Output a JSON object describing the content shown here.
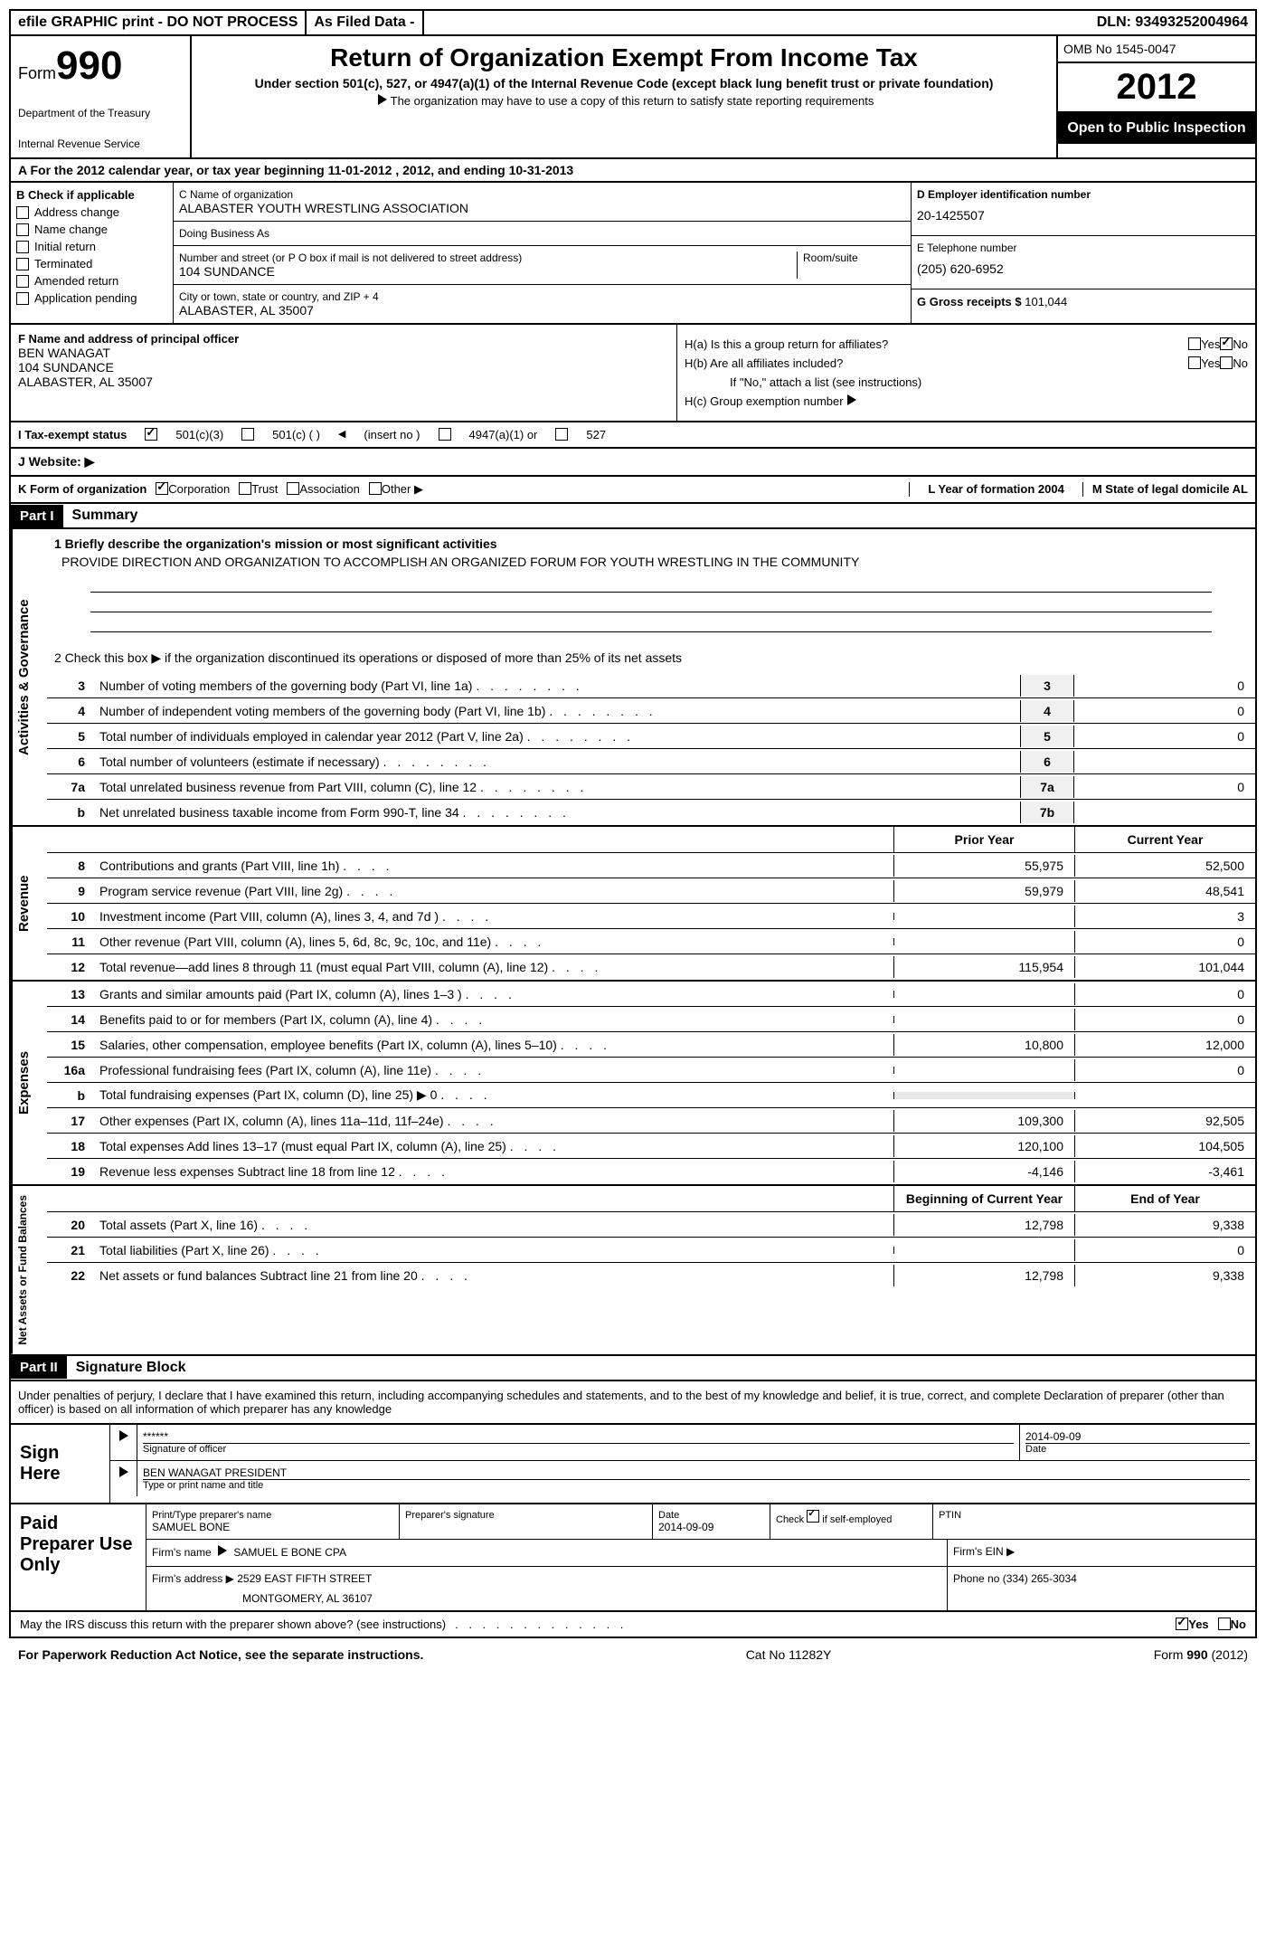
{
  "topbar": {
    "efile": "efile GRAPHIC print - DO NOT PROCESS",
    "asfiled": "As Filed Data -",
    "dln_label": "DLN:",
    "dln": "93493252004964"
  },
  "header": {
    "form_label": "Form",
    "form_num": "990",
    "title": "Return of Organization Exempt From Income Tax",
    "subtitle": "Under section 501(c), 527, or 4947(a)(1) of the Internal Revenue Code (except black lung benefit trust or private foundation)",
    "note": "The organization may have to use a copy of this return to satisfy state reporting requirements",
    "dept1": "Department of the Treasury",
    "dept2": "Internal Revenue Service",
    "omb": "OMB No 1545-0047",
    "year": "2012",
    "open": "Open to Public Inspection"
  },
  "sectionA": "A  For the 2012 calendar year, or tax year beginning 11-01-2012     , 2012, and ending 10-31-2013",
  "checkboxB": {
    "label": "B  Check if applicable",
    "items": [
      "Address change",
      "Name change",
      "Initial return",
      "Terminated",
      "Amended return",
      "Application pending"
    ]
  },
  "orgC": {
    "name_label": "C Name of organization",
    "name": "ALABASTER YOUTH WRESTLING ASSOCIATION",
    "dba_label": "Doing Business As",
    "street_label": "Number and street (or P O  box if mail is not delivered to street address)",
    "room_label": "Room/suite",
    "street": "104 SUNDANCE",
    "city_label": "City or town, state or country, and ZIP + 4",
    "city": "ALABASTER, AL  35007"
  },
  "rightD": {
    "ein_label": "D Employer identification number",
    "ein": "20-1425507",
    "tel_label": "E Telephone number",
    "tel": "(205) 620-6952",
    "gross_label": "G Gross receipts $",
    "gross": "101,044"
  },
  "officerF": {
    "label": "F   Name and address of principal officer",
    "name": "BEN WANAGAT",
    "street": "104 SUNDANCE",
    "city": "ALABASTER, AL  35007"
  },
  "H": {
    "a": "H(a)  Is this a group return for affiliates?",
    "b": "H(b)  Are all affiliates included?",
    "b_note": "If \"No,\" attach a list  (see instructions)",
    "c": "H(c)   Group exemption number",
    "yes": "Yes",
    "no": "No"
  },
  "I": {
    "label": "I   Tax-exempt status",
    "opts": [
      "501(c)(3)",
      "501(c) (  )",
      "(insert no )",
      "4947(a)(1) or",
      "527"
    ]
  },
  "J": "J  Website: ▶",
  "K": {
    "label": "K Form of organization",
    "opts": [
      "Corporation",
      "Trust",
      "Association",
      "Other ▶"
    ],
    "L": "L Year of formation  2004",
    "M": "M State of legal domicile  AL"
  },
  "part1": {
    "header": "Part I",
    "title": "Summary",
    "line1_label": "1   Briefly describe the organization's mission or most significant activities",
    "line1_text": "PROVIDE DIRECTION AND ORGANIZATION TO ACCOMPLISH AN ORGANIZED FORUM FOR YOUTH WRESTLING IN THE COMMUNITY",
    "line2": "2   Check this box ▶         if the organization discontinued its operations or disposed of more than 25% of its net assets",
    "vert_gov": "Activities & Governance",
    "vert_rev": "Revenue",
    "vert_exp": "Expenses",
    "vert_net": "Net Assets or Fund Balances",
    "col_py": "Prior Year",
    "col_cy": "Current Year",
    "col_boy": "Beginning of Current Year",
    "col_eoy": "End of Year",
    "gov_lines": [
      {
        "n": "3",
        "t": "Number of voting members of the governing body (Part VI, line 1a)",
        "box": "3",
        "val": "0"
      },
      {
        "n": "4",
        "t": "Number of independent voting members of the governing body (Part VI, line 1b)",
        "box": "4",
        "val": "0"
      },
      {
        "n": "5",
        "t": "Total number of individuals employed in calendar year 2012 (Part V, line 2a)",
        "box": "5",
        "val": "0"
      },
      {
        "n": "6",
        "t": "Total number of volunteers (estimate if necessary)",
        "box": "6",
        "val": ""
      },
      {
        "n": "7a",
        "t": "Total unrelated business revenue from Part VIII, column (C), line 12",
        "box": "7a",
        "val": "0"
      },
      {
        "n": "b",
        "t": "Net unrelated business taxable income from Form 990-T, line 34",
        "box": "7b",
        "val": ""
      }
    ],
    "rev_lines": [
      {
        "n": "8",
        "t": "Contributions and grants (Part VIII, line 1h)",
        "py": "55,975",
        "cy": "52,500"
      },
      {
        "n": "9",
        "t": "Program service revenue (Part VIII, line 2g)",
        "py": "59,979",
        "cy": "48,541"
      },
      {
        "n": "10",
        "t": "Investment income (Part VIII, column (A), lines 3, 4, and 7d )",
        "py": "",
        "cy": "3"
      },
      {
        "n": "11",
        "t": "Other revenue (Part VIII, column (A), lines 5, 6d, 8c, 9c, 10c, and 11e)",
        "py": "",
        "cy": "0"
      },
      {
        "n": "12",
        "t": "Total revenue—add lines 8 through 11 (must equal Part VIII, column (A), line 12)",
        "py": "115,954",
        "cy": "101,044"
      }
    ],
    "exp_lines": [
      {
        "n": "13",
        "t": "Grants and similar amounts paid (Part IX, column (A), lines 1–3 )",
        "py": "",
        "cy": "0"
      },
      {
        "n": "14",
        "t": "Benefits paid to or for members (Part IX, column (A), line 4)",
        "py": "",
        "cy": "0"
      },
      {
        "n": "15",
        "t": "Salaries, other compensation, employee benefits (Part IX, column (A), lines 5–10)",
        "py": "10,800",
        "cy": "12,000"
      },
      {
        "n": "16a",
        "t": "Professional fundraising fees (Part IX, column (A), line 11e)",
        "py": "",
        "cy": "0"
      },
      {
        "n": "b",
        "t": "Total fundraising expenses (Part IX, column (D), line 25) ▶ 0",
        "py": "",
        "cy": ""
      },
      {
        "n": "17",
        "t": "Other expenses (Part IX, column (A), lines 11a–11d, 11f–24e)",
        "py": "109,300",
        "cy": "92,505"
      },
      {
        "n": "18",
        "t": "Total expenses  Add lines 13–17 (must equal Part IX, column (A), line 25)",
        "py": "120,100",
        "cy": "104,505"
      },
      {
        "n": "19",
        "t": "Revenue less expenses  Subtract line 18 from line 12",
        "py": "-4,146",
        "cy": "-3,461"
      }
    ],
    "net_lines": [
      {
        "n": "20",
        "t": "Total assets (Part X, line 16)",
        "py": "12,798",
        "cy": "9,338"
      },
      {
        "n": "21",
        "t": "Total liabilities (Part X, line 26)",
        "py": "",
        "cy": "0"
      },
      {
        "n": "22",
        "t": "Net assets or fund balances  Subtract line 21 from line 20",
        "py": "12,798",
        "cy": "9,338"
      }
    ]
  },
  "part2": {
    "header": "Part II",
    "title": "Signature Block",
    "text": "Under penalties of perjury, I declare that I have examined this return, including accompanying schedules and statements, and to the best of my knowledge and belief, it is true, correct, and complete  Declaration of preparer (other than officer) is based on all information of which preparer has any knowledge",
    "sign_here": "Sign Here",
    "sig_stars": "******",
    "sig_label": "Signature of officer",
    "date": "2014-09-09",
    "date_label": "Date",
    "name": "BEN WANAGAT PRESIDENT",
    "name_label": "Type or print name and title"
  },
  "preparer": {
    "label": "Paid Preparer Use Only",
    "name_label": "Print/Type preparer's name",
    "name": "SAMUEL BONE",
    "sig_label": "Preparer's signature",
    "date_label": "Date",
    "date": "2014-09-09",
    "check_label": "Check         if self-employed",
    "ptin_label": "PTIN",
    "firm_label": "Firm's name",
    "firm": "SAMUEL E BONE CPA",
    "ein_label": "Firm's EIN ▶",
    "addr_label": "Firm's address ▶",
    "addr1": "2529 EAST FIFTH STREET",
    "addr2": "MONTGOMERY, AL 36107",
    "phone_label": "Phone no",
    "phone": "(334) 265-3034"
  },
  "discuss": {
    "text": "May the IRS discuss this return with the preparer shown above? (see instructions)",
    "yes": "Yes",
    "no": "No"
  },
  "footer": {
    "left": "For Paperwork Reduction Act Notice, see the separate instructions.",
    "mid": "Cat No  11282Y",
    "right": "Form 990 (2012)"
  }
}
